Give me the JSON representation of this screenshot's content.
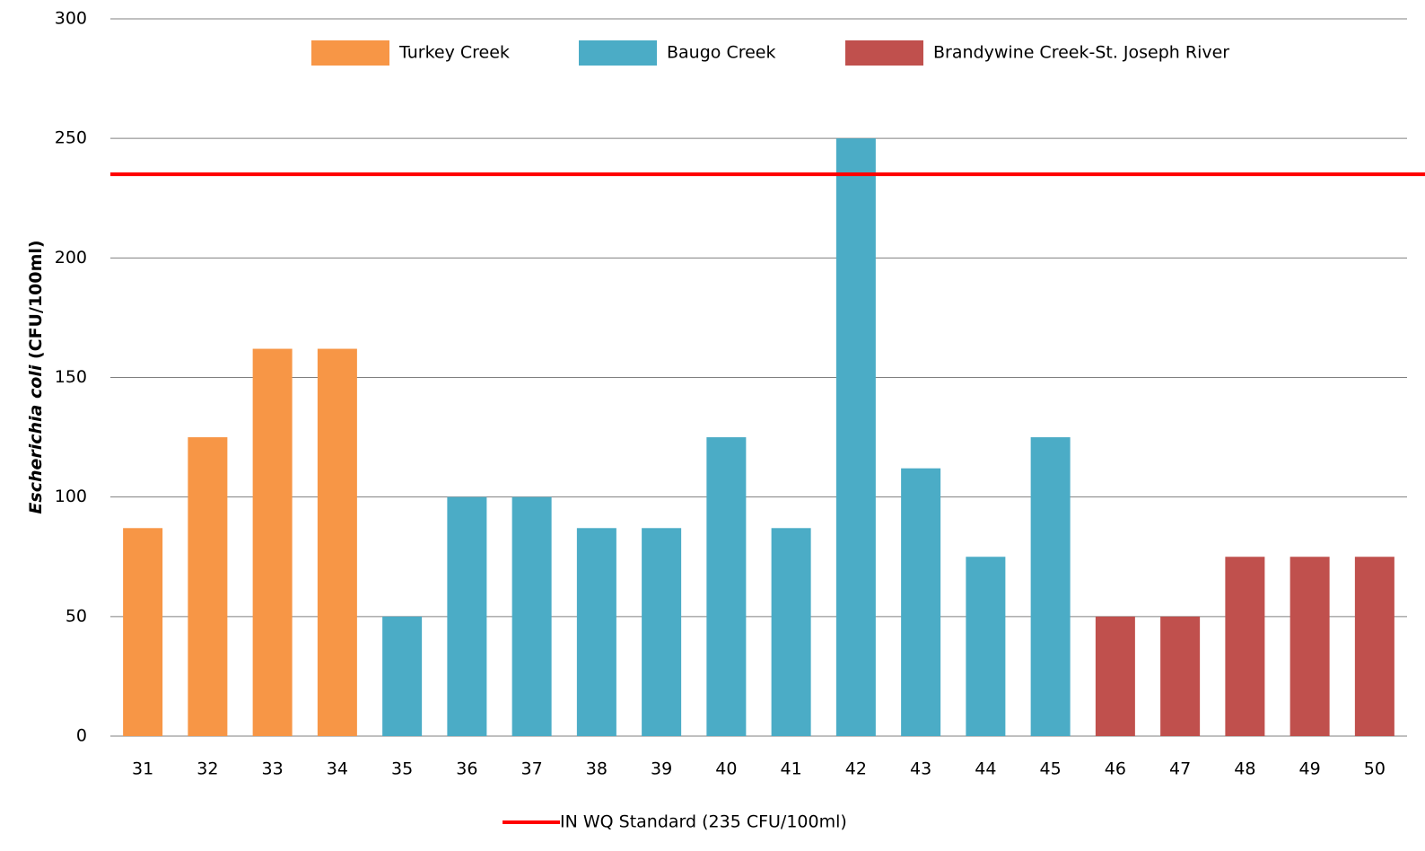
{
  "chart_data": {
    "type": "bar",
    "categories": [
      "31",
      "32",
      "33",
      "34",
      "35",
      "36",
      "37",
      "38",
      "39",
      "40",
      "41",
      "42",
      "43",
      "44",
      "45",
      "46",
      "47",
      "48",
      "49",
      "50"
    ],
    "series": [
      {
        "name": "Turkey Creek",
        "color": "#f79646",
        "values": [
          87,
          125,
          162,
          162,
          null,
          null,
          null,
          null,
          null,
          null,
          null,
          null,
          null,
          null,
          null,
          null,
          null,
          null,
          null,
          null
        ]
      },
      {
        "name": "Baugo Creek",
        "color": "#4bacc6",
        "values": [
          null,
          null,
          null,
          null,
          50,
          100,
          100,
          87,
          87,
          125,
          87,
          250,
          112,
          75,
          125,
          null,
          null,
          null,
          null,
          null
        ]
      },
      {
        "name": "Brandywine Creek-St. Joseph River",
        "color": "#c0504d",
        "values": [
          null,
          null,
          null,
          null,
          null,
          null,
          null,
          null,
          null,
          null,
          null,
          null,
          null,
          null,
          null,
          50,
          50,
          75,
          75,
          75
        ]
      }
    ],
    "ylabel": {
      "italic": "Escherichia coli",
      "rest": "(CFU/100ml)"
    },
    "reference_line": {
      "value": 235,
      "label": "IN WQ Standard (235  CFU/100ml)",
      "color": "#ff0000"
    },
    "ylim": [
      0,
      300
    ],
    "yticks": [
      0,
      50,
      100,
      150,
      200,
      250,
      300
    ],
    "grid": true
  }
}
